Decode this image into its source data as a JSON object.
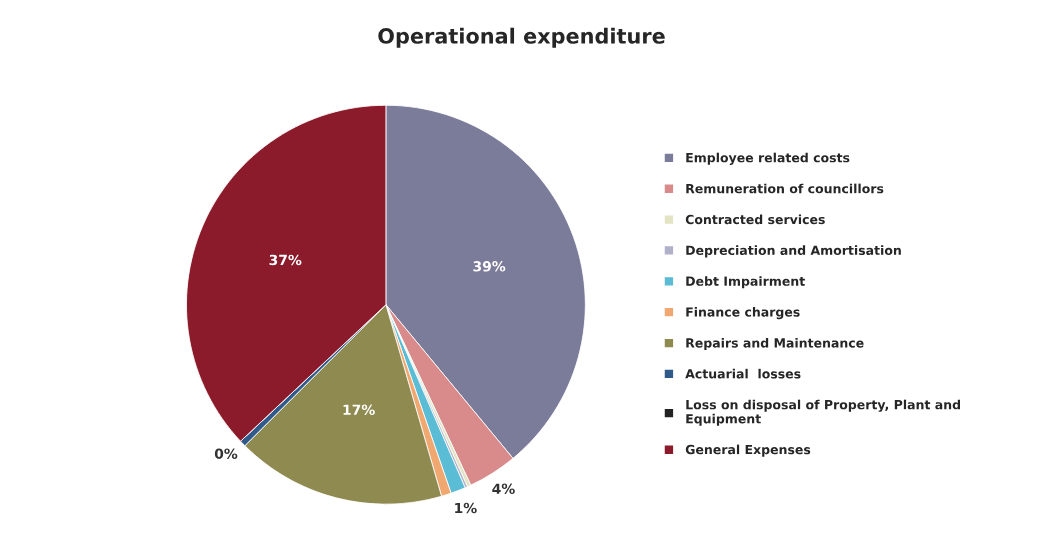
{
  "chart_data": {
    "type": "pie",
    "title": "Operational expenditure",
    "categories": [
      "Employee related costs",
      "Remuneration of councillors",
      "Contracted services",
      "Depreciation and Amortisation",
      "Debt Impairment",
      "Finance charges",
      "Repairs and Maintenance",
      "Actuarial  losses",
      "Loss on disposal of Property, Plant and\nEquipment",
      "General Expenses"
    ],
    "values": [
      39,
      4,
      0.3,
      0.2,
      1.2,
      0.8,
      17,
      0.5,
      0,
      37
    ],
    "colors": [
      "#7b7b9a",
      "#d98b8b",
      "#e4e4c4",
      "#b0b0c8",
      "#5bbcd6",
      "#f0a870",
      "#8f8a50",
      "#2f5a8a",
      "#222222",
      "#8b1a2a"
    ],
    "value_labels": [
      "39%",
      "4%",
      null,
      null,
      "1%",
      null,
      "17%",
      null,
      "0%",
      "37%"
    ],
    "legend": "right"
  }
}
